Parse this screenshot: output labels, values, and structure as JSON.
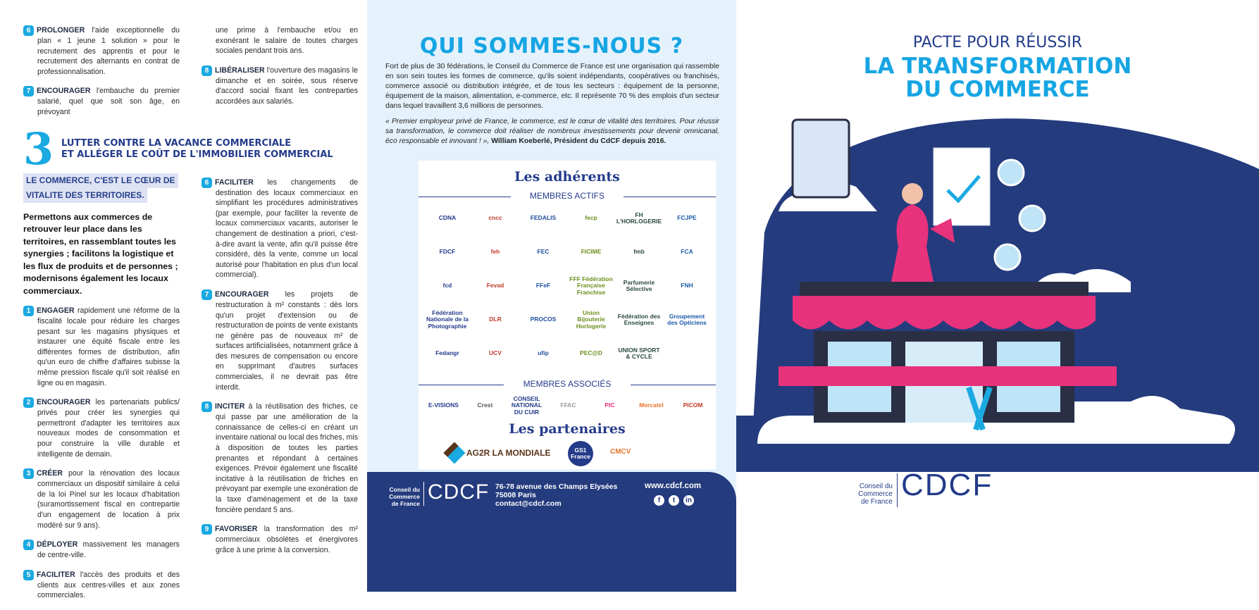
{
  "left": {
    "top_items": [
      {
        "num": "6",
        "verb": "PROLONGER",
        "text": "l'aide exceptionnelle du plan « 1 jeune 1 solution » pour le recrutement des apprentis et pour le recrutement des alternants en contrat de professionnalisation."
      },
      {
        "num": "7",
        "verb": "ENCOURAGER",
        "text": "l'embauche du premier salarié, quel que soit son âge, en prévoyant",
        "continued": "une prime à l'embauche et/ou en exonérant le salaire de toutes charges sociales pendant trois ans."
      },
      {
        "num": "8",
        "verb": "LIBÉRALISER",
        "text": "l'ouverture des magasins le dimanche et en soirée, sous réserve d'accord social fixant les contreparties accordées aux salariés."
      }
    ],
    "section": {
      "number": "3",
      "title_line1": "LUTTER CONTRE LA VACANCE COMMERCIALE",
      "title_line2": "ET ALLÉGER LE COÛT DE L'IMMOBILIER COMMERCIAL",
      "highlight_line1": "LE COMMERCE, C'EST LE CŒUR DE",
      "highlight_line2": "VITALITE DES TERRITOIRES.",
      "intro": "Permettons aux commerces de retrouver leur place dans les territoires, en rassemblant toutes les synergies ; facilitons la logistique et les flux de produits et de personnes ; modernisons également les locaux commerciaux.",
      "items_col1": [
        {
          "num": "1",
          "verb": "ENGAGER",
          "text": "rapidement une réforme de la fiscalité locale pour réduire les charges pesant sur les magasins physiques et instaurer une équité fiscale entre les différentes formes de distribution, afin qu'un euro de chiffre d'affaires subisse la même pression fiscale qu'il soit réalisé en ligne ou en magasin."
        },
        {
          "num": "2",
          "verb": "ENCOURAGER",
          "text": "les partenariats publics/ privés pour créer les synergies qui permettront d'adapter les territoires aux nouveaux modes de consommation et pour construire la ville durable et intelligente de demain."
        },
        {
          "num": "3",
          "verb": "CRÉER",
          "text": "pour la rénovation des locaux commerciaux un dispositif similaire à celui de la loi Pinel sur les locaux d'habitation (suramortissement fiscal en contrepartie d'un engagement de location à prix modéré sur 9 ans)."
        },
        {
          "num": "4",
          "verb": "DÉPLOYER",
          "text": "massivement les managers de centre-ville."
        },
        {
          "num": "5",
          "verb": "FACILITER",
          "text": "l'accès des produits et des clients aux centres-villes et aux zones commerciales."
        }
      ],
      "items_col2": [
        {
          "num": "6",
          "verb": "FACILITER",
          "text": "les changements de destination des locaux commerciaux en simplifiant les procédures administratives (par exemple, pour faciliter la revente de locaux commerciaux vacants, autoriser le changement de destination a priori, c'est-à-dire avant la vente, afin qu'il puisse être considéré, dès la vente, comme un local autorisé pour l'habitation en plus d'un local commercial)."
        },
        {
          "num": "7",
          "verb": "ENCOURAGER",
          "text": "les projets de restructuration à m² constants : dès lors qu'un projet d'extension ou de restructuration de points de vente existants ne génère pas de nouveaux m² de surfaces artificialisées, notamment grâce à des mesures de compensation ou encore en supprimant d'autres surfaces commerciales, il ne devrait pas être interdit."
        },
        {
          "num": "8",
          "verb": "INCITER",
          "text": "à la réutilisation des friches, ce qui passe par une amélioration de la connaissance de celles-ci en créant un inventaire national ou local des friches, mis à disposition de toutes les parties prenantes et répondant à certaines exigences. Prévoir également une fiscalité incitative à la réutilisation de friches en prévoyant par exemple une exonération de la taxe d'aménagement et de la taxe foncière pendant 5 ans."
        },
        {
          "num": "9",
          "verb": "FAVORISER",
          "text": "la transformation des m² commerciaux obsolètes et énergivores grâce à une prime à la conversion."
        }
      ]
    }
  },
  "middle": {
    "title": "QUI SOMMES-NOUS ?",
    "paragraph": "Fort de plus de 30 fédérations, le Conseil du Commerce de France est une organisation qui rassemble en son sein toutes les formes de commerce, qu'ils soient indépendants, coopératives ou franchisés, commerce associé ou distribution intégrée, et de tous les secteurs : équipement de la personne, équipement de la maison, alimentation, e-commerce, etc. Il représente 70 % des emplois d'un secteur dans lequel travaillent 3,6 millions de personnes.",
    "quote": "« Premier employeur privé de France, le commerce, est le cœur de vitalité des territoires. Pour réussir sa transformation, le commerce doit réaliser de nombreux investissements pour devenir omnicanal, éco responsable et innovant ! »,",
    "quote_author": "William Koeberlé, Président du CdCF depuis 2016.",
    "members_title": "Les adhérents",
    "active_label": "MEMBRES ACTIFS",
    "active_members": [
      "CDNA",
      "cncc",
      "FEDALIS",
      "fecp",
      "FH L'HORLOGERIE",
      "FCJPE",
      "FDCF",
      "feh",
      "FEC",
      "FICIME",
      "fmb",
      "FCA",
      "fcd",
      "Fevad",
      "FFeF",
      "FFF Fédération Française Franchise",
      "Parfumerie Sélective",
      "FNH",
      "Fédération Nationale de la Photographie",
      "DLR",
      "PROCOS",
      "Union Bijouterie Horlogerie",
      "Fédération des Enseignes",
      "Groupement des Opticiens",
      "Fedangr",
      "UCV",
      "ufip",
      "PEC@D",
      "UNION SPORT & CYCLE"
    ],
    "associated_label": "MEMBRES ASSOCIÉS",
    "associated_members": [
      "E-VISIONS",
      "Crest",
      "CONSEIL NATIONAL DU CUIR",
      "FFAC",
      "PIC",
      "Mercatel",
      "PICOM"
    ],
    "partners_title": "Les partenaires",
    "partners": [
      "AG2R LA MONDIALE",
      "GS1 France",
      "CMCV"
    ],
    "footer": {
      "org_line1": "Conseil du",
      "org_line2": "Commerce",
      "org_line3": "de France",
      "logo": "CDCF",
      "address1": "76-78 avenue des Champs Elysées",
      "address2": "75008 Paris",
      "email": "contact@cdcf.com",
      "website": "www.cdcf.com",
      "social": [
        "facebook",
        "twitter",
        "linkedin"
      ]
    }
  },
  "right": {
    "subtitle": "PACTE POUR RÉUSSIR",
    "title_line1": "LA TRANSFORMATION",
    "title_line2": "DU COMMERCE",
    "org_line1": "Conseil du",
    "org_line2": "Commerce",
    "org_line3": "de France",
    "logo": "CDCF"
  },
  "colors": {
    "cyan": "#16a5e3",
    "navy": "#243b7d",
    "pink": "#e8327c",
    "light_blue_bg": "#e5f2fb"
  }
}
